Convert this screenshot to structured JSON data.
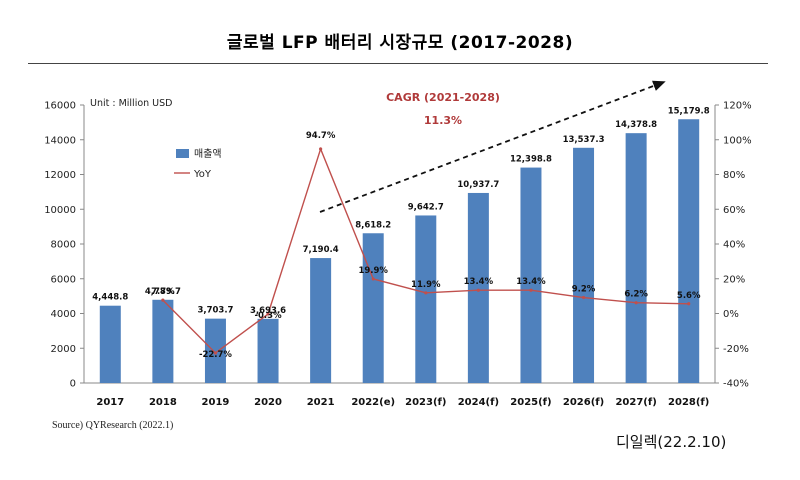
{
  "page": {
    "title": "글로벌 LFP 배터리 시장규모 (2017-2028)",
    "source": "Source) QYResearch (2022.1)",
    "credit": "디일렉(22.2.10)"
  },
  "chart_data": {
    "type": "bar",
    "title": "글로벌 LFP 배터리 시장규모 (2017-2028)",
    "unit": "Unit : Million USD",
    "categories": [
      "2017",
      "2018",
      "2019",
      "2020",
      "2021",
      "2022(e)",
      "2023(f)",
      "2024(f)",
      "2025(f)",
      "2026(f)",
      "2027(f)",
      "2028(f)"
    ],
    "series": [
      {
        "name": "매출액",
        "type": "bar",
        "axis": "left",
        "color": "#4f81bd",
        "values": [
          4448.8,
          4789.7,
          3703.7,
          3693.6,
          7190.4,
          8618.2,
          9642.7,
          10937.7,
          12398.8,
          13537.3,
          14378.8,
          15179.8
        ],
        "labels": [
          "4,448.8",
          "4,789.7",
          "3,703.7",
          "3,693.6",
          "7,190.4",
          "8,618.2",
          "9,642.7",
          "10,937.7",
          "12,398.8",
          "13,537.3",
          "14,378.8",
          "15,179.8"
        ]
      },
      {
        "name": "YoY",
        "type": "line",
        "axis": "right",
        "color": "#c0504d",
        "values": [
          null,
          7.7,
          -22.7,
          -0.3,
          94.7,
          19.9,
          11.9,
          13.4,
          13.4,
          9.2,
          6.2,
          5.6
        ],
        "labels": [
          "",
          "7.7%",
          "-22.7%",
          "-0.3%",
          "94.7%",
          "19.9%",
          "11.9%",
          "13.4%",
          "13.4%",
          "9.2%",
          "6.2%",
          "5.6%"
        ]
      }
    ],
    "yleft": {
      "lim": [
        0,
        16000
      ],
      "ticks": [
        "0",
        "2000",
        "4000",
        "6000",
        "8000",
        "10000",
        "12000",
        "14000",
        "16000"
      ]
    },
    "yright": {
      "lim": [
        -40,
        120
      ],
      "ticks": [
        "-40%",
        "-20%",
        "0%",
        "20%",
        "40%",
        "60%",
        "80%",
        "100%",
        "120%"
      ]
    },
    "legend": {
      "position": "top-left",
      "items": [
        "매출액",
        "YoY"
      ]
    },
    "annotation": {
      "label": "CAGR (2021-2028)",
      "value": "11.3%",
      "arrow": "dashed, rising"
    },
    "grid": false
  }
}
